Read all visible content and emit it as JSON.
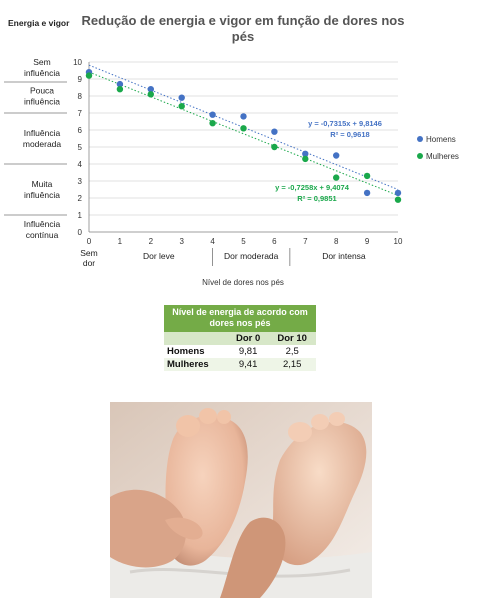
{
  "chart_data": {
    "type": "scatter",
    "title": "Redução de energia e vigor em função de dores nos pés",
    "xlabel": "Nível de dores nos pés",
    "ylabel": "Energia e vigor",
    "xlim": [
      0,
      10
    ],
    "ylim": [
      0,
      10
    ],
    "x_ticks": [
      "0",
      "1",
      "2",
      "3",
      "4",
      "5",
      "6",
      "7",
      "8",
      "9",
      "10"
    ],
    "y_ticks": [
      "0",
      "1",
      "2",
      "3",
      "4",
      "5",
      "6",
      "7",
      "8",
      "9",
      "10"
    ],
    "x_zero_sublabel": "Sem\ndor",
    "x_groups": [
      {
        "label": "Dor leve",
        "from": 0,
        "to": 4
      },
      {
        "label": "Dor moderada",
        "from": 4,
        "to": 6.5
      },
      {
        "label": "Dor intensa",
        "from": 6.5,
        "to": 10
      }
    ],
    "y_groups": [
      {
        "label": "Sem\ninfluência",
        "from": 9,
        "to": 10
      },
      {
        "label": "Pouca\ninfluência",
        "from": 7,
        "to": 9
      },
      {
        "label": "Influência\nmoderada",
        "from": 4,
        "to": 7
      },
      {
        "label": "Muita\ninfluência",
        "from": 1,
        "to": 4
      },
      {
        "label": "Influência\ncontínua",
        "from": 0,
        "to": 1
      }
    ],
    "grid": true,
    "legend_position": "right",
    "series": [
      {
        "name": "Homens",
        "color": "#4472c4",
        "x": [
          0,
          1,
          2,
          3,
          4,
          5,
          6,
          7,
          8,
          9,
          10
        ],
        "y": [
          9.4,
          8.7,
          8.4,
          7.9,
          6.9,
          6.8,
          5.9,
          4.6,
          4.5,
          2.3,
          2.3
        ],
        "trend": {
          "slope": -0.7315,
          "intercept": 9.8146,
          "equation": "y = -0,7315x + 9,8146",
          "r2": "R² = 0,9618"
        }
      },
      {
        "name": "Mulheres",
        "color": "#1aa84b",
        "x": [
          0,
          1,
          2,
          3,
          4,
          5,
          6,
          7,
          8,
          9,
          10
        ],
        "y": [
          9.2,
          8.4,
          8.1,
          7.4,
          6.4,
          6.1,
          5.0,
          4.3,
          3.2,
          3.3,
          1.9
        ],
        "trend": {
          "slope": -0.7258,
          "intercept": 9.4074,
          "equation": "y = -0,7258x + 9,4074",
          "r2": "R² = 0,9851"
        }
      }
    ]
  },
  "table": {
    "title": "Nível de energia de acordo com dores nos pés",
    "headers": [
      "",
      "Dor 0",
      "Dor 10"
    ],
    "rows": [
      {
        "label": "Homens",
        "dor0": "9,81",
        "dor10": "2,5"
      },
      {
        "label": "Mulheres",
        "dor0": "9,41",
        "dor10": "2,15"
      }
    ]
  },
  "photo": {
    "icon": "foot-massage-photo",
    "colors": {
      "skin": "#e8b59a",
      "shadow": "#b9826a",
      "towel": "#ecebe8"
    }
  }
}
